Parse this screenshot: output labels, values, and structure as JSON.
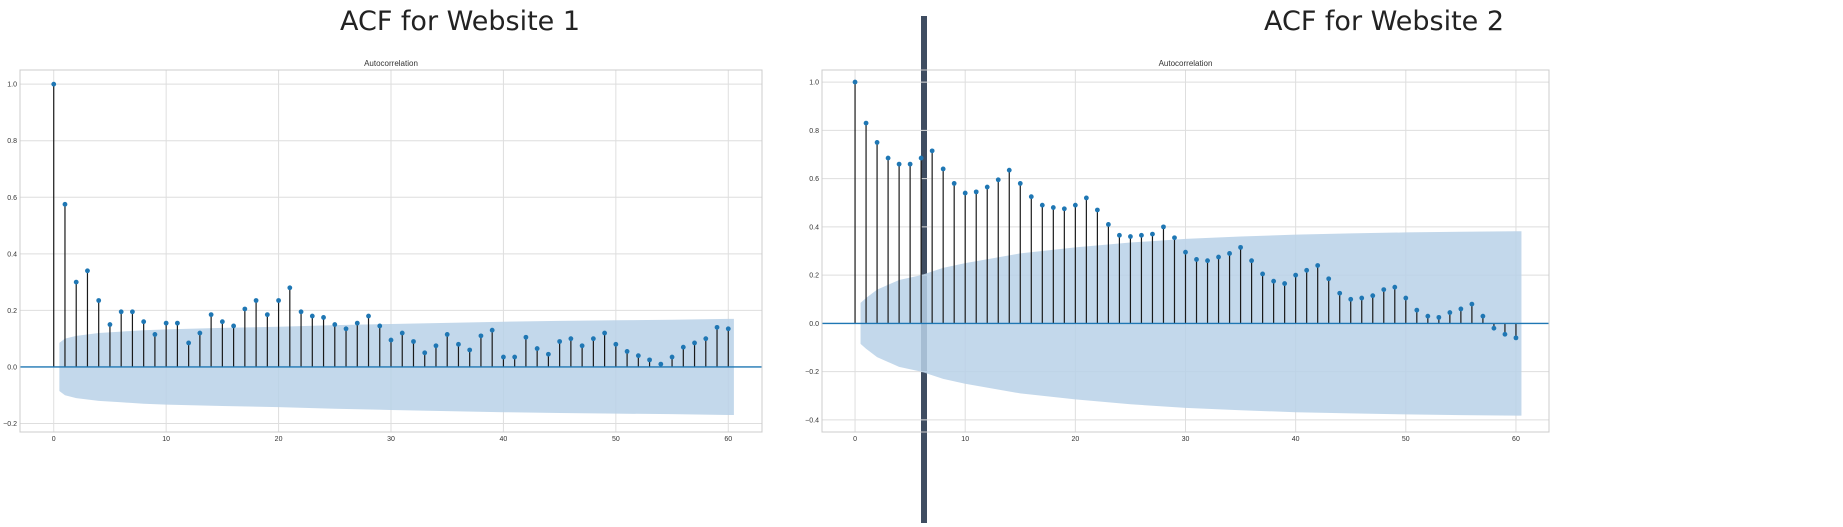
{
  "panels": [
    {
      "title": "ACF for Website 1"
    },
    {
      "title": "ACF for Website 2"
    }
  ],
  "colors": {
    "stem": "#1a1a1a",
    "marker": "#1f77b4",
    "band": "#b8d1e7",
    "baseline": "#1f77b4",
    "grid": "#dedede",
    "divider": "#3f4d61"
  },
  "chart_data": [
    {
      "type": "stem",
      "title": "Autocorrelation",
      "xlim": [
        -3,
        63
      ],
      "ylim": [
        -0.23,
        1.05
      ],
      "xticks": [
        0,
        10,
        20,
        30,
        40,
        50,
        60
      ],
      "yticks": [
        -0.2,
        0.0,
        0.2,
        0.4,
        0.6,
        0.8,
        1.0
      ],
      "ytick_labels": [
        "−0.2",
        "0.0",
        "0.2",
        "0.4",
        "0.6",
        "0.8",
        "1.0"
      ],
      "grid": true,
      "lags": [
        0,
        1,
        2,
        3,
        4,
        5,
        6,
        7,
        8,
        9,
        10,
        11,
        12,
        13,
        14,
        15,
        16,
        17,
        18,
        19,
        20,
        21,
        22,
        23,
        24,
        25,
        26,
        27,
        28,
        29,
        30,
        31,
        32,
        33,
        34,
        35,
        36,
        37,
        38,
        39,
        40,
        41,
        42,
        43,
        44,
        45,
        46,
        47,
        48,
        49,
        50,
        51,
        52,
        53,
        54,
        55,
        56,
        57,
        58,
        59,
        60
      ],
      "values": [
        1.0,
        0.575,
        0.3,
        0.34,
        0.235,
        0.15,
        0.195,
        0.195,
        0.16,
        0.115,
        0.155,
        0.155,
        0.085,
        0.12,
        0.185,
        0.16,
        0.145,
        0.205,
        0.235,
        0.185,
        0.235,
        0.28,
        0.195,
        0.18,
        0.175,
        0.15,
        0.135,
        0.155,
        0.18,
        0.145,
        0.095,
        0.12,
        0.09,
        0.05,
        0.075,
        0.115,
        0.08,
        0.06,
        0.11,
        0.13,
        0.035,
        0.035,
        0.105,
        0.065,
        0.045,
        0.09,
        0.1,
        0.075,
        0.1,
        0.12,
        0.08,
        0.055,
        0.04,
        0.025,
        0.01,
        0.035,
        0.07,
        0.085,
        0.1,
        0.14,
        0.135
      ],
      "confidence_band": {
        "lags": [
          0.5,
          1,
          2,
          4,
          6,
          8,
          10,
          15,
          20,
          25,
          30,
          35,
          40,
          45,
          50,
          55,
          60,
          60.5
        ],
        "upper": [
          0.085,
          0.1,
          0.11,
          0.12,
          0.125,
          0.13,
          0.133,
          0.138,
          0.142,
          0.148,
          0.152,
          0.156,
          0.16,
          0.163,
          0.165,
          0.167,
          0.17,
          0.17
        ]
      }
    },
    {
      "type": "stem",
      "title": "Autocorrelation",
      "xlim": [
        -3,
        63
      ],
      "ylim": [
        -0.45,
        1.05
      ],
      "xticks": [
        0,
        10,
        20,
        30,
        40,
        50,
        60
      ],
      "yticks": [
        -0.4,
        -0.2,
        0.0,
        0.2,
        0.4,
        0.6,
        0.8,
        1.0
      ],
      "ytick_labels": [
        "−0.4",
        "−0.2",
        "0.0",
        "0.2",
        "0.4",
        "0.6",
        "0.8",
        "1.0"
      ],
      "grid": true,
      "lags": [
        0,
        1,
        2,
        3,
        4,
        5,
        6,
        7,
        8,
        9,
        10,
        11,
        12,
        13,
        14,
        15,
        16,
        17,
        18,
        19,
        20,
        21,
        22,
        23,
        24,
        25,
        26,
        27,
        28,
        29,
        30,
        31,
        32,
        33,
        34,
        35,
        36,
        37,
        38,
        39,
        40,
        41,
        42,
        43,
        44,
        45,
        46,
        47,
        48,
        49,
        50,
        51,
        52,
        53,
        54,
        55,
        56,
        57,
        58,
        59,
        60
      ],
      "values": [
        1.0,
        0.83,
        0.75,
        0.685,
        0.66,
        0.66,
        0.685,
        0.715,
        0.64,
        0.58,
        0.54,
        0.545,
        0.565,
        0.595,
        0.635,
        0.58,
        0.525,
        0.49,
        0.48,
        0.475,
        0.49,
        0.52,
        0.47,
        0.41,
        0.365,
        0.36,
        0.365,
        0.37,
        0.4,
        0.355,
        0.295,
        0.265,
        0.26,
        0.275,
        0.29,
        0.315,
        0.26,
        0.205,
        0.175,
        0.165,
        0.2,
        0.22,
        0.24,
        0.185,
        0.125,
        0.1,
        0.105,
        0.115,
        0.14,
        0.15,
        0.105,
        0.055,
        0.03,
        0.025,
        0.045,
        0.06,
        0.08,
        0.03,
        -0.02,
        -0.045,
        -0.06
      ],
      "confidence_band": {
        "lags": [
          0.5,
          1,
          2,
          4,
          6,
          8,
          10,
          15,
          20,
          25,
          30,
          35,
          40,
          45,
          50,
          55,
          60,
          60.5
        ],
        "upper": [
          0.085,
          0.105,
          0.14,
          0.18,
          0.2,
          0.23,
          0.25,
          0.29,
          0.315,
          0.335,
          0.35,
          0.36,
          0.368,
          0.373,
          0.377,
          0.38,
          0.382,
          0.382
        ]
      }
    }
  ]
}
